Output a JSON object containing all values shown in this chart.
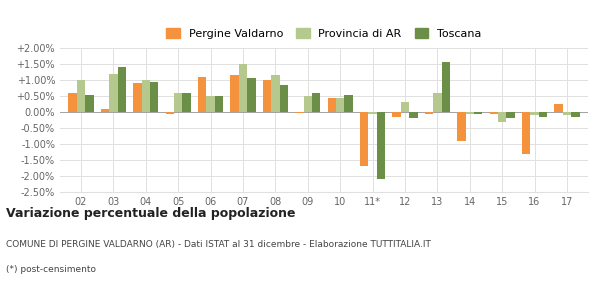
{
  "categories": [
    "02",
    "03",
    "04",
    "05",
    "06",
    "07",
    "08",
    "09",
    "10",
    "11*",
    "12",
    "13",
    "14",
    "15",
    "16",
    "17"
  ],
  "pergine": [
    0.006,
    0.001,
    0.009,
    -0.0007,
    0.011,
    0.0115,
    0.01,
    -0.0002,
    0.0045,
    -0.017,
    -0.0015,
    -0.0005,
    -0.0092,
    -0.0005,
    -0.013,
    0.0025
  ],
  "provincia": [
    0.01,
    0.012,
    0.01,
    0.006,
    0.005,
    0.015,
    0.0115,
    0.005,
    0.0045,
    -0.0005,
    0.003,
    0.006,
    -0.0007,
    -0.003,
    -0.001,
    -0.001
  ],
  "toscana": [
    0.0053,
    0.014,
    0.0093,
    0.006,
    0.005,
    0.0107,
    0.0085,
    0.006,
    0.0052,
    -0.021,
    -0.002,
    0.0155,
    -0.0007,
    -0.002,
    -0.0015,
    -0.0015
  ],
  "color_pergine": "#f5923e",
  "color_provincia": "#b5c98e",
  "color_toscana": "#6b8f47",
  "ylim_min": -0.025,
  "ylim_max": 0.02,
  "yticks": [
    -0.025,
    -0.02,
    -0.015,
    -0.01,
    -0.005,
    0.0,
    0.005,
    0.01,
    0.015,
    0.02
  ],
  "ytick_labels": [
    "-2.50%",
    "-2.00%",
    "-1.50%",
    "-1.00%",
    "-0.50%",
    "0.00%",
    "+0.50%",
    "+1.00%",
    "+1.50%",
    "+2.00%"
  ],
  "legend_labels": [
    "Pergine Valdarno",
    "Provincia di AR",
    "Toscana"
  ],
  "title": "Variazione percentuale della popolazione",
  "subtitle": "COMUNE DI PERGINE VALDARNO (AR) - Dati ISTAT al 31 dicembre - Elaborazione TUTTITALIA.IT",
  "footnote": "(*) post-censimento",
  "background_color": "#ffffff",
  "grid_color": "#e0e0e0"
}
